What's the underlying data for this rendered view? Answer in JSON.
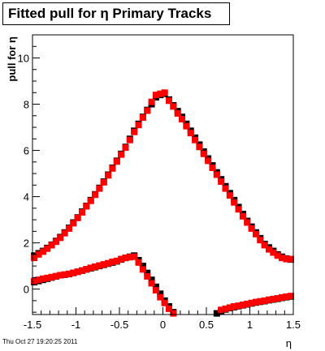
{
  "title": "Fitted pull for η  Primary Tracks",
  "timestamp": "Thu Oct 27 19:20:25 2011",
  "chart_data": {
    "type": "scatter",
    "xlabel": "η",
    "ylabel": "pull for η",
    "xlim": [
      -1.5,
      1.5
    ],
    "ylim": [
      -1.1,
      11.0
    ],
    "x_ticks": [
      "-1.5",
      "-1",
      "-0.5",
      "0",
      "0.5",
      "1",
      "1.5"
    ],
    "x_tick_values": [
      -1.5,
      -1,
      -0.5,
      0,
      0.5,
      1,
      1.5
    ],
    "y_ticks": [
      "0",
      "2",
      "4",
      "6",
      "8",
      "10"
    ],
    "y_tick_values": [
      0,
      2,
      4,
      6,
      8,
      10
    ],
    "grid": false,
    "colors": {
      "black": "#000000",
      "red": "#ff0000"
    },
    "series": [
      {
        "color": "#000000",
        "marker": "square",
        "points": [
          [
            -1.48,
            1.45
          ],
          [
            -1.43,
            1.55
          ],
          [
            -1.38,
            1.65
          ],
          [
            -1.33,
            1.78
          ],
          [
            -1.28,
            1.92
          ],
          [
            -1.23,
            2.08
          ],
          [
            -1.18,
            2.25
          ],
          [
            -1.13,
            2.45
          ],
          [
            -1.08,
            2.65
          ],
          [
            -1.03,
            2.88
          ],
          [
            -0.98,
            3.1
          ],
          [
            -0.93,
            3.35
          ],
          [
            -0.88,
            3.6
          ],
          [
            -0.83,
            3.85
          ],
          [
            -0.78,
            4.1
          ],
          [
            -0.73,
            4.38
          ],
          [
            -0.68,
            4.65
          ],
          [
            -0.63,
            4.95
          ],
          [
            -0.58,
            5.25
          ],
          [
            -0.53,
            5.55
          ],
          [
            -0.48,
            5.85
          ],
          [
            -0.43,
            6.15
          ],
          [
            -0.38,
            6.5
          ],
          [
            -0.33,
            6.85
          ],
          [
            -0.28,
            7.15
          ],
          [
            -0.23,
            7.45
          ],
          [
            -0.18,
            7.75
          ],
          [
            -0.13,
            8.0
          ],
          [
            -0.08,
            8.3
          ],
          [
            -0.03,
            8.4
          ],
          [
            0.02,
            8.45
          ],
          [
            0.07,
            8.2
          ],
          [
            0.12,
            7.95
          ],
          [
            0.17,
            7.7
          ],
          [
            0.22,
            7.45
          ],
          [
            0.27,
            7.15
          ],
          [
            0.32,
            6.85
          ],
          [
            0.37,
            6.55
          ],
          [
            0.42,
            6.25
          ],
          [
            0.47,
            5.95
          ],
          [
            0.52,
            5.65
          ],
          [
            0.57,
            5.35
          ],
          [
            0.62,
            5.05
          ],
          [
            0.67,
            4.75
          ],
          [
            0.72,
            4.45
          ],
          [
            0.77,
            4.15
          ],
          [
            0.82,
            3.85
          ],
          [
            0.87,
            3.55
          ],
          [
            0.92,
            3.25
          ],
          [
            0.97,
            2.95
          ],
          [
            1.02,
            2.7
          ],
          [
            1.07,
            2.45
          ],
          [
            1.12,
            2.2
          ],
          [
            1.17,
            1.95
          ],
          [
            1.22,
            1.8
          ],
          [
            1.27,
            1.65
          ],
          [
            1.32,
            1.5
          ],
          [
            1.37,
            1.4
          ],
          [
            1.42,
            1.32
          ],
          [
            1.47,
            1.28
          ],
          [
            -1.48,
            0.3
          ],
          [
            -1.43,
            0.35
          ],
          [
            -1.38,
            0.4
          ],
          [
            -1.33,
            0.45
          ],
          [
            -1.28,
            0.5
          ],
          [
            -1.23,
            0.55
          ],
          [
            -1.18,
            0.6
          ],
          [
            -1.13,
            0.62
          ],
          [
            -1.08,
            0.65
          ],
          [
            -1.03,
            0.7
          ],
          [
            -0.98,
            0.75
          ],
          [
            -0.93,
            0.8
          ],
          [
            -0.88,
            0.85
          ],
          [
            -0.83,
            0.9
          ],
          [
            -0.78,
            0.95
          ],
          [
            -0.73,
            1.0
          ],
          [
            -0.68,
            1.05
          ],
          [
            -0.63,
            1.1
          ],
          [
            -0.58,
            1.15
          ],
          [
            -0.53,
            1.2
          ],
          [
            -0.48,
            1.28
          ],
          [
            -0.43,
            1.35
          ],
          [
            -0.38,
            1.4
          ],
          [
            -0.33,
            1.45
          ],
          [
            -0.28,
            1.25
          ],
          [
            -0.23,
            1.0
          ],
          [
            -0.18,
            0.7
          ],
          [
            -0.13,
            0.4
          ],
          [
            -0.08,
            0.1
          ],
          [
            -0.03,
            -0.2
          ],
          [
            0.02,
            -0.5
          ],
          [
            0.07,
            -0.75
          ],
          [
            0.12,
            -1.0
          ],
          [
            0.62,
            -1.05
          ],
          [
            0.67,
            -0.95
          ],
          [
            0.72,
            -0.88
          ],
          [
            0.77,
            -0.82
          ],
          [
            0.82,
            -0.78
          ],
          [
            0.87,
            -0.74
          ],
          [
            0.92,
            -0.7
          ],
          [
            0.97,
            -0.66
          ],
          [
            1.02,
            -0.62
          ],
          [
            1.07,
            -0.58
          ],
          [
            1.12,
            -0.55
          ],
          [
            1.17,
            -0.52
          ],
          [
            1.22,
            -0.48
          ],
          [
            1.27,
            -0.45
          ],
          [
            1.32,
            -0.42
          ],
          [
            1.37,
            -0.38
          ],
          [
            1.42,
            -0.35
          ],
          [
            1.47,
            -0.32
          ]
        ]
      },
      {
        "color": "#ff0000",
        "marker": "square",
        "points": [
          [
            -1.48,
            1.35
          ],
          [
            -1.43,
            1.5
          ],
          [
            -1.38,
            1.62
          ],
          [
            -1.33,
            1.75
          ],
          [
            -1.28,
            1.9
          ],
          [
            -1.23,
            2.05
          ],
          [
            -1.18,
            2.22
          ],
          [
            -1.13,
            2.42
          ],
          [
            -1.08,
            2.62
          ],
          [
            -1.03,
            2.85
          ],
          [
            -0.98,
            3.08
          ],
          [
            -0.93,
            3.32
          ],
          [
            -0.88,
            3.58
          ],
          [
            -0.83,
            3.82
          ],
          [
            -0.78,
            4.08
          ],
          [
            -0.73,
            4.35
          ],
          [
            -0.68,
            4.62
          ],
          [
            -0.63,
            4.92
          ],
          [
            -0.58,
            5.22
          ],
          [
            -0.53,
            5.52
          ],
          [
            -0.48,
            5.82
          ],
          [
            -0.43,
            6.12
          ],
          [
            -0.38,
            6.45
          ],
          [
            -0.33,
            6.8
          ],
          [
            -0.28,
            7.1
          ],
          [
            -0.23,
            7.42
          ],
          [
            -0.18,
            7.72
          ],
          [
            -0.13,
            8.1
          ],
          [
            -0.08,
            8.4
          ],
          [
            -0.03,
            8.45
          ],
          [
            0.02,
            8.5
          ],
          [
            0.07,
            8.15
          ],
          [
            0.12,
            7.9
          ],
          [
            0.17,
            7.6
          ],
          [
            0.22,
            7.35
          ],
          [
            0.27,
            7.05
          ],
          [
            0.32,
            6.75
          ],
          [
            0.37,
            6.45
          ],
          [
            0.42,
            6.15
          ],
          [
            0.47,
            5.85
          ],
          [
            0.52,
            5.55
          ],
          [
            0.57,
            5.25
          ],
          [
            0.62,
            4.95
          ],
          [
            0.67,
            4.65
          ],
          [
            0.72,
            4.35
          ],
          [
            0.77,
            4.05
          ],
          [
            0.82,
            3.75
          ],
          [
            0.87,
            3.45
          ],
          [
            0.92,
            3.15
          ],
          [
            0.97,
            2.88
          ],
          [
            1.02,
            2.62
          ],
          [
            1.07,
            2.38
          ],
          [
            1.12,
            2.12
          ],
          [
            1.17,
            1.9
          ],
          [
            1.22,
            1.72
          ],
          [
            1.27,
            1.58
          ],
          [
            1.32,
            1.45
          ],
          [
            1.37,
            1.35
          ],
          [
            1.42,
            1.3
          ],
          [
            1.47,
            1.3
          ],
          [
            -1.48,
            0.35
          ],
          [
            -1.43,
            0.4
          ],
          [
            -1.38,
            0.45
          ],
          [
            -1.33,
            0.48
          ],
          [
            -1.28,
            0.52
          ],
          [
            -1.23,
            0.56
          ],
          [
            -1.18,
            0.6
          ],
          [
            -1.13,
            0.63
          ],
          [
            -1.08,
            0.66
          ],
          [
            -1.03,
            0.7
          ],
          [
            -0.98,
            0.75
          ],
          [
            -0.93,
            0.8
          ],
          [
            -0.88,
            0.86
          ],
          [
            -0.83,
            0.92
          ],
          [
            -0.78,
            0.97
          ],
          [
            -0.73,
            1.02
          ],
          [
            -0.68,
            1.07
          ],
          [
            -0.63,
            1.12
          ],
          [
            -0.58,
            1.18
          ],
          [
            -0.53,
            1.22
          ],
          [
            -0.48,
            1.3
          ],
          [
            -0.43,
            1.35
          ],
          [
            -0.38,
            1.38
          ],
          [
            -0.33,
            1.4
          ],
          [
            -0.28,
            1.15
          ],
          [
            -0.23,
            0.85
          ],
          [
            -0.18,
            0.55
          ],
          [
            -0.13,
            0.25
          ],
          [
            -0.08,
            -0.05
          ],
          [
            -0.03,
            -0.35
          ],
          [
            0.02,
            -0.6
          ],
          [
            0.07,
            -0.85
          ],
          [
            0.12,
            -1.05
          ],
          [
            0.67,
            -0.9
          ],
          [
            0.72,
            -0.85
          ],
          [
            0.77,
            -0.8
          ],
          [
            0.82,
            -0.75
          ],
          [
            0.87,
            -0.72
          ],
          [
            0.92,
            -0.68
          ],
          [
            0.97,
            -0.64
          ],
          [
            1.02,
            -0.6
          ],
          [
            1.07,
            -0.56
          ],
          [
            1.12,
            -0.53
          ],
          [
            1.17,
            -0.5
          ],
          [
            1.22,
            -0.46
          ],
          [
            1.27,
            -0.43
          ],
          [
            1.32,
            -0.4
          ],
          [
            1.37,
            -0.36
          ],
          [
            1.42,
            -0.33
          ],
          [
            1.47,
            -0.3
          ]
        ]
      }
    ]
  }
}
